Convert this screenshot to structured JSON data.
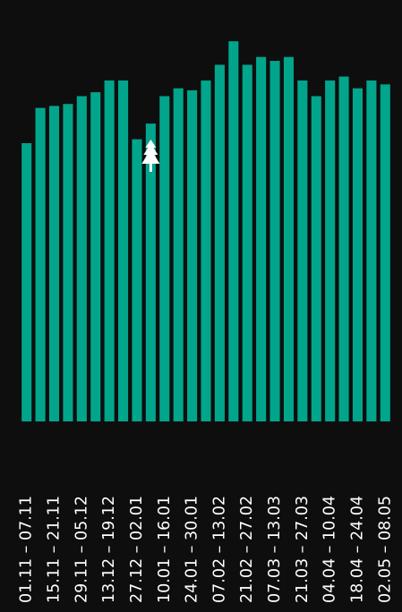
{
  "chart_data": {
    "type": "bar",
    "title": "",
    "xlabel": "",
    "ylabel": "",
    "grid": false,
    "legend": "none",
    "colors": {
      "background": "#0e0e0e",
      "bar": "#00a58c",
      "label": "#ffffff",
      "icon": "#ffffff"
    },
    "icon": {
      "name": "tree-icon",
      "category_index": 9
    },
    "ylim": [
      0,
      100
    ],
    "categories": [
      "01.11 – 07.11",
      "",
      "15.11 – 21.11",
      "",
      "29.11 – 05.12",
      "",
      "13.12 – 19.12",
      "",
      "27.12 – 02.01",
      "",
      "10.01 – 16.01",
      "",
      "24.01 – 30.01",
      "",
      "07.02 – 13.02",
      "",
      "21.02 – 27.02",
      "",
      "07.03 – 13.03",
      "",
      "21.03 – 27.03",
      "",
      "04.04 – 10.04",
      "",
      "18.04 – 24.04",
      "",
      "02.05 – 08.05"
    ],
    "values": [
      71,
      80,
      80.5,
      81,
      83,
      84,
      87,
      87,
      72,
      76,
      83,
      85,
      84.5,
      87,
      91,
      97,
      91,
      93,
      92,
      93,
      87,
      83,
      87,
      88,
      85,
      87,
      86
    ]
  }
}
